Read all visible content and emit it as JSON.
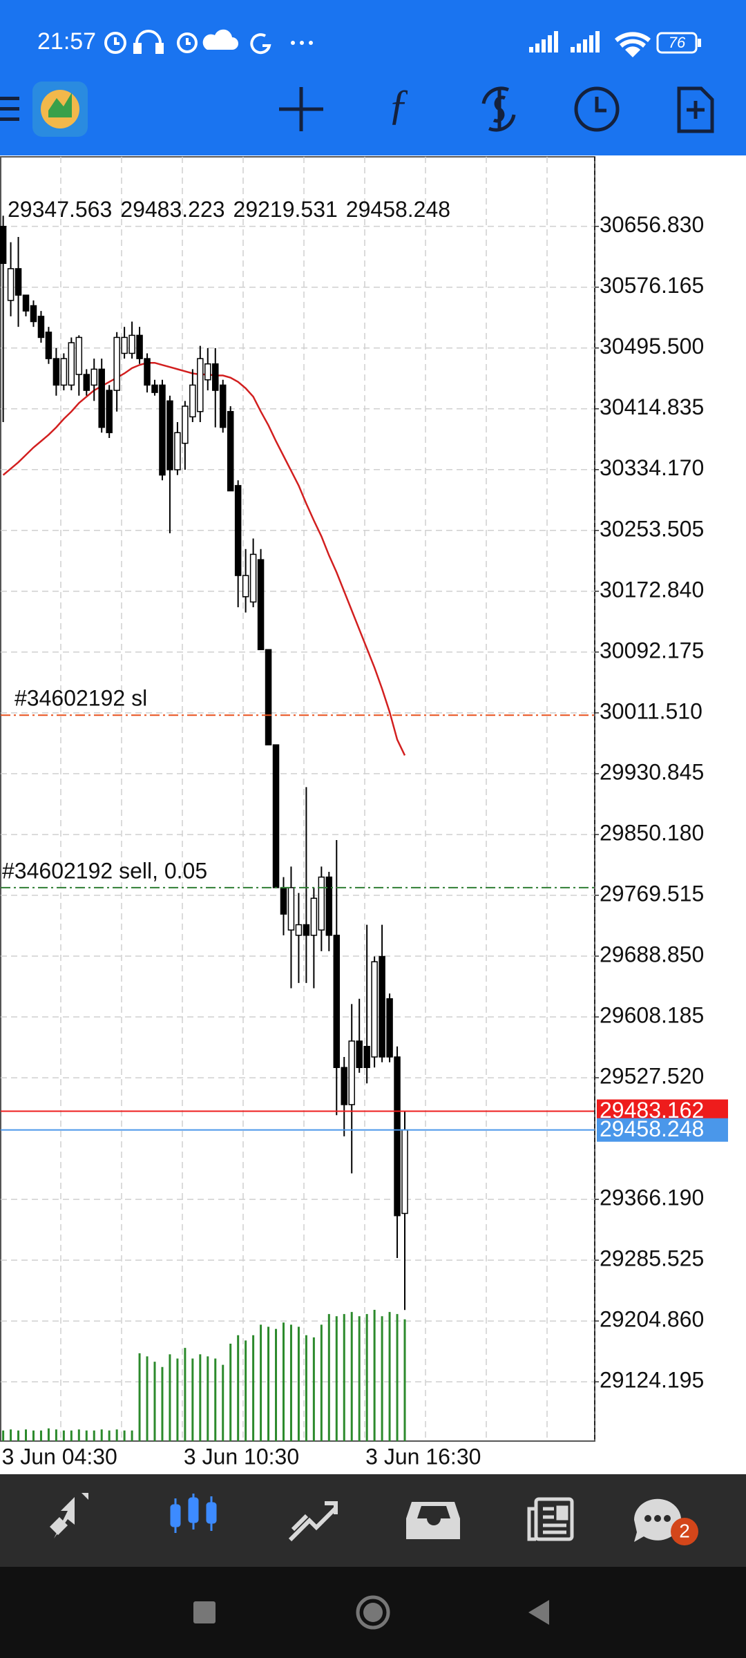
{
  "status_bar": {
    "time": "21:57",
    "battery": "76"
  },
  "chart_data": {
    "type": "candlestick",
    "categories": [
      "3 Jun 04:30",
      null,
      null,
      null,
      null,
      null,
      null,
      null,
      null,
      null,
      null,
      null,
      null,
      null,
      null,
      null,
      null,
      null,
      null,
      null,
      null,
      null,
      null,
      null,
      "3 Jun 10:30",
      null,
      null,
      null,
      null,
      null,
      null,
      null,
      null,
      null,
      null,
      null,
      null,
      null,
      null,
      null,
      null,
      null,
      null,
      null,
      null,
      null,
      null,
      null,
      "3 Jun 16:30",
      null,
      null,
      null,
      null,
      null
    ],
    "open": [
      30656.8,
      30558.6,
      30600.7,
      30565.6,
      30551.6,
      30537.5,
      30516.5,
      30481.4,
      30446.3,
      30446.3,
      30460.4,
      30460.4,
      30446.3,
      30467.4,
      30439.3,
      30439.3,
      30488.4,
      30488.4,
      30512.3,
      30481.4,
      30446.3,
      30446.3,
      30425.3,
      30334.0,
      30369.1,
      30404.2,
      30411.2,
      30453.3,
      30474.4,
      30446.3,
      30411.2,
      30313.0,
      30165.6,
      30158.6,
      30214.7,
      30095.4,
      29969.1,
      29779.7,
      29723.5,
      29716.5,
      29730.5,
      29716.5,
      29723.5,
      29793.7,
      29716.5,
      29541.1,
      29491.9,
      29576.2,
      29569.1,
      29555.1,
      29688.4,
      29632.3,
      29555.1,
      29347.563
    ],
    "high": [
      30670.9,
      30635.8,
      30642.8,
      30565.6,
      30558.6,
      30544.6,
      30523.5,
      30495.4,
      30488.4,
      30509.5,
      30512.3,
      30467.4,
      30481.4,
      30481.4,
      30446.3,
      30516.5,
      30523.5,
      30530.5,
      30523.5,
      30488.4,
      30453.3,
      30453.3,
      30432.3,
      30397.2,
      30425.3,
      30467.4,
      30498.3,
      30495.4,
      30495.4,
      30453.3,
      30418.3,
      30320.0,
      30228.8,
      30242.8,
      30228.8,
      30095.4,
      29969.1,
      29793.7,
      29807.7,
      29772.6,
      29913.0,
      29779.7,
      29807.7,
      29800.7,
      29842.8,
      29555.1,
      29625.3,
      29632.3,
      29730.5,
      29688.4,
      29730.5,
      29639.3,
      29569.1,
      29483.223
    ],
    "low": [
      30397.2,
      30537.5,
      30523.5,
      30537.5,
      30523.5,
      30502.5,
      30474.4,
      30432.3,
      30439.3,
      30439.3,
      30432.3,
      30432.3,
      30425.3,
      30383.2,
      30376.1,
      30411.2,
      30481.4,
      30481.4,
      30474.4,
      30436.5,
      30432.3,
      30320.0,
      30249.8,
      30327.0,
      30334.0,
      30397.2,
      30397.2,
      30439.3,
      30390.2,
      30383.2,
      30306.0,
      30151.6,
      30144.6,
      30151.6,
      30095.4,
      29969.1,
      29779.7,
      29716.5,
      29646.3,
      29653.3,
      29653.3,
      29646.3,
      29695.4,
      29695.4,
      29477.9,
      29449.8,
      29400.7,
      29534.1,
      29520.0,
      29541.1,
      29548.1,
      29548.1,
      29288.4,
      29219.531
    ],
    "close": [
      30607.7,
      30600.7,
      30565.6,
      30544.6,
      30530.5,
      30509.5,
      30481.4,
      30446.3,
      30481.4,
      30502.5,
      30509.5,
      30439.3,
      30467.4,
      30390.2,
      30383.2,
      30509.5,
      30509.5,
      30512.3,
      30481.4,
      30446.3,
      30436.5,
      30327.0,
      30334.0,
      30383.2,
      30418.3,
      30446.3,
      30481.4,
      30474.4,
      30439.3,
      30390.2,
      30306.0,
      30193.7,
      30193.7,
      30221.8,
      30095.4,
      29969.1,
      29779.7,
      29744.6,
      29779.7,
      29730.5,
      29716.5,
      29765.6,
      29793.7,
      29716.5,
      29541.1,
      29491.9,
      29576.2,
      29541.1,
      29541.1,
      29681.4,
      29555.1,
      29555.1,
      29344.6,
      29458.248
    ],
    "colors": {
      "up": "#ffffff",
      "down": "#000000",
      "outline": "#000000"
    },
    "ma": {
      "color": "#d21f1f",
      "values": [
        30327.0,
        30335.4,
        30343.9,
        30353.7,
        30363.5,
        30371.9,
        30380.4,
        30390.2,
        30401.4,
        30411.2,
        30422.5,
        30430.9,
        30439.3,
        30444.9,
        30450.5,
        30456.1,
        30461.8,
        30468.8,
        30473.0,
        30475.8,
        30475.8,
        30473.0,
        30470.2,
        30467.4,
        30464.6,
        30461.8,
        30460.4,
        30460.4,
        30459.0,
        30459.0,
        30456.1,
        30450.5,
        30442.1,
        30430.9,
        30411.2,
        30393.0,
        30371.9,
        30352.3,
        30332.6,
        30313.0,
        30289.1,
        30266.7,
        30245.6,
        30220.4,
        30197.9,
        30172.6,
        30147.4,
        30122.1,
        30096.9,
        30071.6,
        30043.5,
        30012.7,
        29976.1,
        29955.1
      ]
    },
    "volume": {
      "color": "#2c8a2c",
      "values": [
        10,
        11,
        10,
        11,
        10,
        10,
        12,
        11,
        10,
        10,
        11,
        10,
        10,
        11,
        10,
        11,
        10,
        10,
        83,
        80,
        75,
        70,
        82,
        78,
        88,
        78,
        82,
        80,
        78,
        72,
        92,
        100,
        95,
        100,
        110,
        108,
        106,
        112,
        110,
        108,
        100,
        98,
        110,
        120,
        118,
        120,
        122,
        118,
        120,
        124,
        118,
        122,
        120,
        115
      ]
    },
    "ylim": [
      29045.6,
      30750.9
    ],
    "yticks": [
      {
        "value": 30656.83,
        "label": "30656.830"
      },
      {
        "value": 30576.165,
        "label": "30576.165"
      },
      {
        "value": 30495.5,
        "label": "30495.500"
      },
      {
        "value": 30414.835,
        "label": "30414.835"
      },
      {
        "value": 30334.17,
        "label": "30334.170"
      },
      {
        "value": 30253.505,
        "label": "30253.505"
      },
      {
        "value": 30172.84,
        "label": "30172.840"
      },
      {
        "value": 30092.175,
        "label": "30092.175"
      },
      {
        "value": 30011.51,
        "label": "30011.510"
      },
      {
        "value": 29930.845,
        "label": "29930.845"
      },
      {
        "value": 29850.18,
        "label": "29850.180"
      },
      {
        "value": 29769.515,
        "label": "29769.515"
      },
      {
        "value": 29688.85,
        "label": "29688.850"
      },
      {
        "value": 29608.185,
        "label": "29608.185"
      },
      {
        "value": 29527.52,
        "label": "29527.520"
      },
      {
        "value": 29366.19,
        "label": "29366.190"
      },
      {
        "value": 29285.525,
        "label": "29285.525"
      },
      {
        "value": 29204.86,
        "label": "29204.860"
      },
      {
        "value": 29124.195,
        "label": "29124.195"
      }
    ],
    "grid": true,
    "orders": [
      {
        "label": "#34602192 sl",
        "value": 30008.4,
        "color": "#e8501c"
      },
      {
        "label": "#34602192 sell, 0.05",
        "value": 29779.7,
        "color": "#2e7d32"
      }
    ],
    "price_lines": [
      {
        "value": 29483.162,
        "color": "#ee1c1c"
      },
      {
        "value": 29458.248,
        "color": "#4a97ea"
      }
    ]
  },
  "bottom_bar": {
    "chat_badge": "2"
  }
}
